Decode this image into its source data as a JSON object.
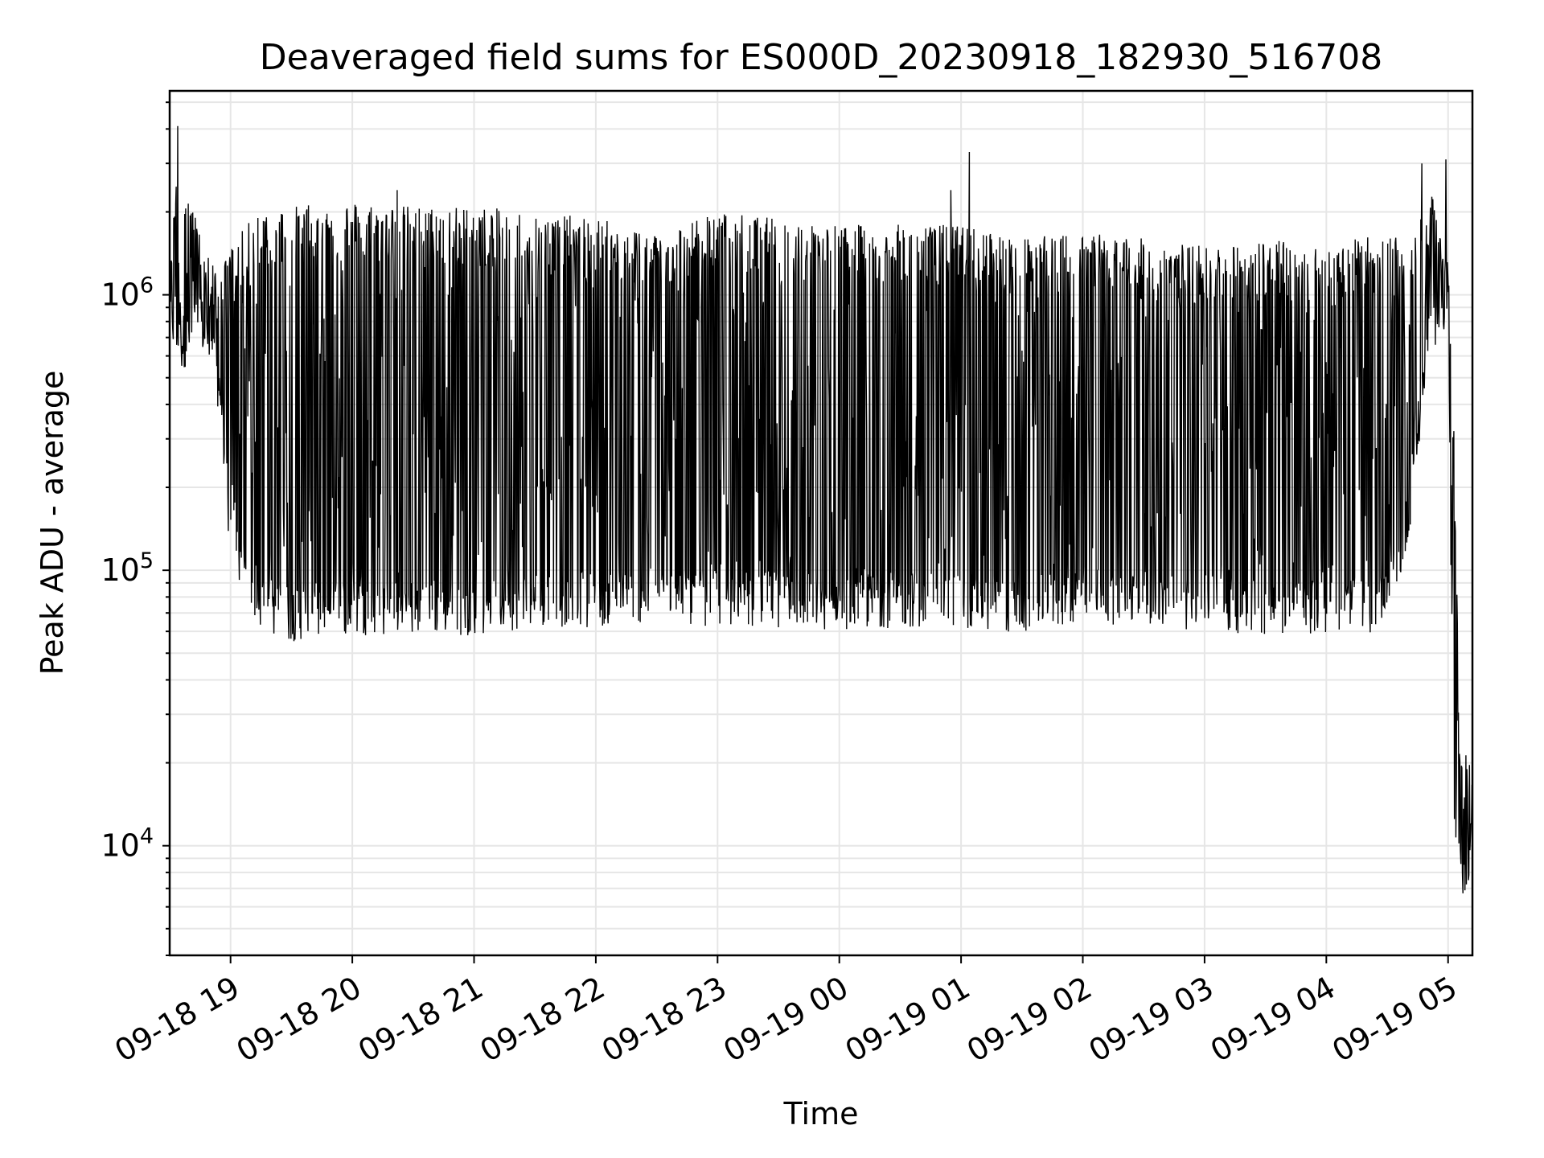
{
  "chart_data": {
    "type": "line",
    "title": "Deaveraged field sums for ES000D_20230918_182930_516708",
    "xlabel": "Time",
    "ylabel": "Peak ADU - average",
    "yscale": "log",
    "grid": true,
    "color": "#000000",
    "x_range": [
      "2023-09-18 18:30",
      "2023-09-19 05:12"
    ],
    "ylim": [
      4000,
      5500000
    ],
    "x_ticks": [
      {
        "time": "2023-09-18 19:00",
        "label": "09-18 19"
      },
      {
        "time": "2023-09-18 20:00",
        "label": "09-18 20"
      },
      {
        "time": "2023-09-18 21:00",
        "label": "09-18 21"
      },
      {
        "time": "2023-09-18 22:00",
        "label": "09-18 22"
      },
      {
        "time": "2023-09-18 23:00",
        "label": "09-18 23"
      },
      {
        "time": "2023-09-19 00:00",
        "label": "09-19 00"
      },
      {
        "time": "2023-09-19 01:00",
        "label": "09-19 01"
      },
      {
        "time": "2023-09-19 02:00",
        "label": "09-19 02"
      },
      {
        "time": "2023-09-19 03:00",
        "label": "09-19 03"
      },
      {
        "time": "2023-09-19 04:00",
        "label": "09-19 04"
      },
      {
        "time": "2023-09-19 05:00",
        "label": "09-19 05"
      }
    ],
    "y_ticks": [
      {
        "value": 10000,
        "base": "10",
        "exp": "4"
      },
      {
        "value": 100000,
        "base": "10",
        "exp": "5"
      },
      {
        "value": 1000000,
        "base": "10",
        "exp": "6"
      }
    ],
    "series_envelope": [
      {
        "time": "2023-09-18 18:30",
        "low": 700000,
        "high": 1100000
      },
      {
        "time": "2023-09-18 18:34",
        "low": 500000,
        "high": 4000000
      },
      {
        "time": "2023-09-18 18:45",
        "low": 650000,
        "high": 1600000
      },
      {
        "time": "2023-09-18 18:55",
        "low": 350000,
        "high": 1200000
      },
      {
        "time": "2023-09-18 19:00",
        "low": 100000,
        "high": 1500000
      },
      {
        "time": "2023-09-18 19:15",
        "low": 60000,
        "high": 2100000
      },
      {
        "time": "2023-09-18 19:30",
        "low": 55000,
        "high": 2100000
      },
      {
        "time": "2023-09-18 20:00",
        "low": 58000,
        "high": 2200000
      },
      {
        "time": "2023-09-18 20:30",
        "low": 58000,
        "high": 2100000
      },
      {
        "time": "2023-09-18 21:00",
        "low": 58000,
        "high": 2100000
      },
      {
        "time": "2023-09-18 21:30",
        "low": 62000,
        "high": 2000000
      },
      {
        "time": "2023-09-18 22:00",
        "low": 62000,
        "high": 1900000
      },
      {
        "time": "2023-09-18 22:30",
        "low": 65000,
        "high": 1700000
      },
      {
        "time": "2023-09-18 23:00",
        "low": 62000,
        "high": 2000000
      },
      {
        "time": "2023-09-18 23:30",
        "low": 62000,
        "high": 1900000
      },
      {
        "time": "2023-09-19 00:00",
        "low": 60000,
        "high": 1800000
      },
      {
        "time": "2023-09-19 00:30",
        "low": 62000,
        "high": 1800000
      },
      {
        "time": "2023-09-19 01:00",
        "low": 62000,
        "high": 1800000
      },
      {
        "time": "2023-09-19 01:30",
        "low": 58000,
        "high": 1600000
      },
      {
        "time": "2023-09-19 02:00",
        "low": 65000,
        "high": 1700000
      },
      {
        "time": "2023-09-19 02:30",
        "low": 62000,
        "high": 1600000
      },
      {
        "time": "2023-09-19 03:00",
        "low": 60000,
        "high": 1500000
      },
      {
        "time": "2023-09-19 03:30",
        "low": 58000,
        "high": 1600000
      },
      {
        "time": "2023-09-19 04:00",
        "low": 58000,
        "high": 1500000
      },
      {
        "time": "2023-09-19 04:30",
        "low": 60000,
        "high": 1700000
      },
      {
        "time": "2023-09-19 04:40",
        "low": 120000,
        "high": 1500000
      },
      {
        "time": "2023-09-19 04:50",
        "low": 500000,
        "high": 2500000
      },
      {
        "time": "2023-09-19 05:00",
        "low": 800000,
        "high": 1600000
      },
      {
        "time": "2023-09-19 05:03",
        "low": 8000,
        "high": 300000
      },
      {
        "time": "2023-09-19 05:06",
        "low": 6000,
        "high": 20000
      },
      {
        "time": "2023-09-19 05:12",
        "low": 8000,
        "high": 24000
      }
    ],
    "spikes": [
      {
        "time": "2023-09-18 18:34",
        "value": 4100000
      },
      {
        "time": "2023-09-18 20:22",
        "value": 2400000
      },
      {
        "time": "2023-09-19 01:04",
        "value": 3300000
      },
      {
        "time": "2023-09-19 00:55",
        "value": 2400000
      },
      {
        "time": "2023-09-19 04:47",
        "value": 3000000
      },
      {
        "time": "2023-09-19 04:59",
        "value": 3100000
      }
    ]
  }
}
